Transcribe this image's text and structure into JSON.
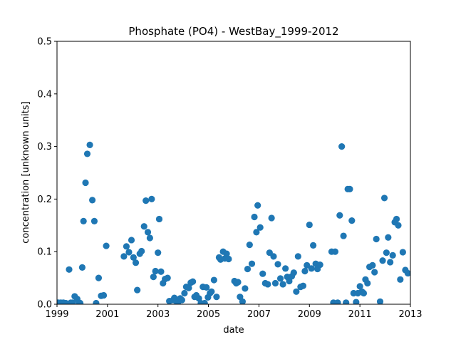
{
  "chart_data": {
    "type": "scatter",
    "title": "Phosphate (PO4) - WestBay_1999-2012",
    "xlabel": "date",
    "ylabel": "concentration [unknown units]",
    "xlim": [
      1999,
      2013
    ],
    "ylim": [
      0,
      0.5
    ],
    "xticks": [
      "1999",
      "2001",
      "2003",
      "2005",
      "2007",
      "2009",
      "2011",
      "2013"
    ],
    "yticks": [
      "0.0",
      "0.1",
      "0.2",
      "0.3",
      "0.4",
      "0.5"
    ],
    "grid": false,
    "marker_color": "#1f77b4",
    "series": [
      {
        "points": [
          [
            1999.05,
            0.003
          ],
          [
            1999.15,
            0.003
          ],
          [
            1999.25,
            0.003
          ],
          [
            1999.35,
            0.002
          ],
          [
            1999.48,
            0.066
          ],
          [
            1999.55,
            0.003
          ],
          [
            1999.62,
            0.003
          ],
          [
            1999.7,
            0.015
          ],
          [
            1999.8,
            0.01
          ],
          [
            1999.88,
            0.003
          ],
          [
            1999.92,
            0.002
          ],
          [
            2000.0,
            0.07
          ],
          [
            2000.05,
            0.158
          ],
          [
            2000.13,
            0.231
          ],
          [
            2000.2,
            0.286
          ],
          [
            2000.3,
            0.303
          ],
          [
            2000.4,
            0.198
          ],
          [
            2000.48,
            0.158
          ],
          [
            2000.55,
            0.002
          ],
          [
            2000.65,
            0.05
          ],
          [
            2000.75,
            0.016
          ],
          [
            2000.85,
            0.017
          ],
          [
            2000.95,
            0.111
          ],
          [
            2001.65,
            0.091
          ],
          [
            2001.75,
            0.11
          ],
          [
            2001.85,
            0.099
          ],
          [
            2001.95,
            0.122
          ],
          [
            2002.03,
            0.089
          ],
          [
            2002.12,
            0.079
          ],
          [
            2002.18,
            0.027
          ],
          [
            2002.28,
            0.096
          ],
          [
            2002.35,
            0.101
          ],
          [
            2002.45,
            0.148
          ],
          [
            2002.52,
            0.197
          ],
          [
            2002.6,
            0.137
          ],
          [
            2002.68,
            0.126
          ],
          [
            2002.75,
            0.2
          ],
          [
            2002.82,
            0.052
          ],
          [
            2002.9,
            0.063
          ],
          [
            2003.0,
            0.098
          ],
          [
            2003.05,
            0.162
          ],
          [
            2003.12,
            0.062
          ],
          [
            2003.2,
            0.04
          ],
          [
            2003.28,
            0.048
          ],
          [
            2003.38,
            0.05
          ],
          [
            2003.45,
            0.006
          ],
          [
            2003.6,
            0.008
          ],
          [
            2003.65,
            0.012
          ],
          [
            2003.72,
            0.006
          ],
          [
            2003.8,
            0.004
          ],
          [
            2003.88,
            0.011
          ],
          [
            2003.95,
            0.008
          ],
          [
            2004.05,
            0.021
          ],
          [
            2004.12,
            0.033
          ],
          [
            2004.22,
            0.031
          ],
          [
            2004.3,
            0.041
          ],
          [
            2004.38,
            0.043
          ],
          [
            2004.45,
            0.014
          ],
          [
            2004.52,
            0.017
          ],
          [
            2004.62,
            0.011
          ],
          [
            2004.7,
            0.002
          ],
          [
            2004.78,
            0.033
          ],
          [
            2004.85,
            0.002
          ],
          [
            2004.92,
            0.032
          ],
          [
            2004.98,
            0.013
          ],
          [
            2005.06,
            0.021
          ],
          [
            2005.12,
            0.024
          ],
          [
            2005.22,
            0.046
          ],
          [
            2005.32,
            0.014
          ],
          [
            2005.42,
            0.089
          ],
          [
            2005.48,
            0.085
          ],
          [
            2005.58,
            0.1
          ],
          [
            2005.65,
            0.087
          ],
          [
            2005.72,
            0.096
          ],
          [
            2005.8,
            0.086
          ],
          [
            2006.03,
            0.044
          ],
          [
            2006.1,
            0.04
          ],
          [
            2006.17,
            0.042
          ],
          [
            2006.25,
            0.014
          ],
          [
            2006.35,
            0.005
          ],
          [
            2006.45,
            0.03
          ],
          [
            2006.55,
            0.067
          ],
          [
            2006.63,
            0.113
          ],
          [
            2006.72,
            0.077
          ],
          [
            2006.82,
            0.166
          ],
          [
            2006.9,
            0.137
          ],
          [
            2006.95,
            0.188
          ],
          [
            2007.05,
            0.146
          ],
          [
            2007.15,
            0.058
          ],
          [
            2007.25,
            0.04
          ],
          [
            2007.35,
            0.038
          ],
          [
            2007.42,
            0.098
          ],
          [
            2007.5,
            0.164
          ],
          [
            2007.58,
            0.091
          ],
          [
            2007.65,
            0.04
          ],
          [
            2007.75,
            0.076
          ],
          [
            2007.85,
            0.049
          ],
          [
            2007.95,
            0.038
          ],
          [
            2008.05,
            0.068
          ],
          [
            2008.12,
            0.052
          ],
          [
            2008.2,
            0.044
          ],
          [
            2008.3,
            0.053
          ],
          [
            2008.38,
            0.06
          ],
          [
            2008.48,
            0.024
          ],
          [
            2008.55,
            0.091
          ],
          [
            2008.65,
            0.033
          ],
          [
            2008.75,
            0.035
          ],
          [
            2008.82,
            0.063
          ],
          [
            2008.9,
            0.074
          ],
          [
            2009.0,
            0.151
          ],
          [
            2009.08,
            0.068
          ],
          [
            2009.15,
            0.112
          ],
          [
            2009.25,
            0.077
          ],
          [
            2009.32,
            0.067
          ],
          [
            2009.42,
            0.075
          ],
          [
            2009.88,
            0.1
          ],
          [
            2009.95,
            0.003
          ],
          [
            2010.02,
            0.1
          ],
          [
            2010.12,
            0.003
          ],
          [
            2010.2,
            0.169
          ],
          [
            2010.28,
            0.3
          ],
          [
            2010.35,
            0.13
          ],
          [
            2010.45,
            0.003
          ],
          [
            2010.52,
            0.219
          ],
          [
            2010.6,
            0.219
          ],
          [
            2010.68,
            0.159
          ],
          [
            2010.75,
            0.021
          ],
          [
            2010.85,
            0.004
          ],
          [
            2010.92,
            0.021
          ],
          [
            2011.0,
            0.034
          ],
          [
            2011.08,
            0.024
          ],
          [
            2011.15,
            0.021
          ],
          [
            2011.22,
            0.047
          ],
          [
            2011.3,
            0.04
          ],
          [
            2011.38,
            0.071
          ],
          [
            2011.5,
            0.074
          ],
          [
            2011.58,
            0.061
          ],
          [
            2011.65,
            0.124
          ],
          [
            2011.8,
            0.005
          ],
          [
            2011.9,
            0.083
          ],
          [
            2011.97,
            0.202
          ],
          [
            2012.05,
            0.098
          ],
          [
            2012.12,
            0.127
          ],
          [
            2012.2,
            0.08
          ],
          [
            2012.3,
            0.093
          ],
          [
            2012.38,
            0.156
          ],
          [
            2012.45,
            0.162
          ],
          [
            2012.52,
            0.15
          ],
          [
            2012.6,
            0.047
          ],
          [
            2012.7,
            0.099
          ],
          [
            2012.8,
            0.065
          ],
          [
            2012.9,
            0.059
          ]
        ]
      }
    ]
  }
}
